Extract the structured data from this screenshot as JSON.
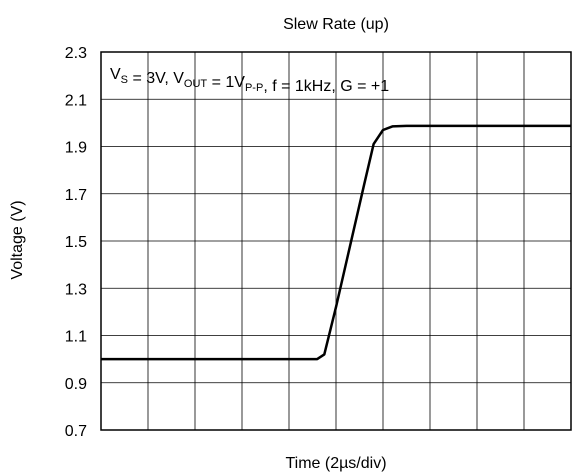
{
  "chart_data": {
    "type": "line",
    "title": "Slew Rate (up)",
    "xlabel": "Time (2µs/div)",
    "ylabel": "Voltage (V)",
    "ylim": [
      0.7,
      2.3
    ],
    "yticks": [
      "0.7",
      "0.9",
      "1.1",
      "1.3",
      "1.5",
      "1.7",
      "1.9",
      "2.1",
      "2.3"
    ],
    "x_divisions": 10,
    "grid": true,
    "annotation": {
      "parts": [
        {
          "t": "V",
          "sub": false
        },
        {
          "t": "S",
          "sub": true
        },
        {
          "t": " = 3V, V",
          "sub": false
        },
        {
          "t": "OUT",
          "sub": true
        },
        {
          "t": " = 1V",
          "sub": false
        },
        {
          "t": "P-P",
          "sub": true
        },
        {
          "t": ", f = 1kHz, G = +1",
          "sub": false
        }
      ]
    },
    "series": [
      {
        "x": [
          0,
          1,
          2,
          3,
          4,
          4.6,
          4.75,
          5.0,
          5.3,
          5.6,
          5.8,
          6.0,
          6.2,
          6.5,
          7,
          8,
          9,
          10
        ],
        "values": [
          1.0,
          1.0,
          1.0,
          1.0,
          1.0,
          1.0,
          1.02,
          1.22,
          1.48,
          1.74,
          1.91,
          1.97,
          1.985,
          1.987,
          1.987,
          1.987,
          1.987,
          1.987
        ]
      }
    ],
    "colors": {
      "line": "#000000",
      "grid": "#000000",
      "axis": "#000000"
    }
  }
}
